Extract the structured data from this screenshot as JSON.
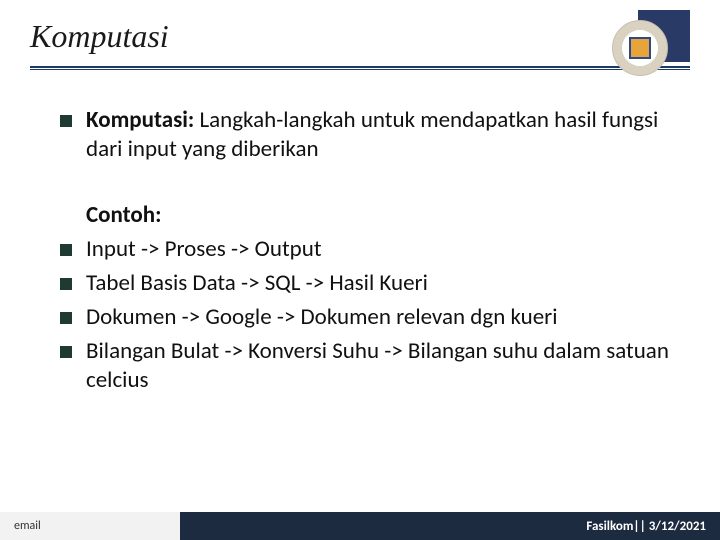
{
  "header": {
    "title": "Komputasi",
    "title_color": "#1a1a1a",
    "underline_color": "#1f3a66"
  },
  "logo": {
    "back_color": "#2a3a66",
    "seal_outer": "#d9d2c0",
    "seal_inner_bg": "#e8a43a",
    "seal_inner_border": "#2b4a8a"
  },
  "definition": {
    "term": "Komputasi:",
    "body": " Langkah-langkah untuk mendapatkan hasil fungsi dari input yang diberikan"
  },
  "examples": {
    "heading": "Contoh:",
    "items": [
      "Input -> Proses -> Output",
      "Tabel Basis Data -> SQL -> Hasil Kueri",
      "Dokumen -> Google -> Dokumen relevan dgn kueri",
      "Bilangan Bulat -> Konversi Suhu -> Bilangan suhu dalam satuan celcius"
    ]
  },
  "footer": {
    "left": "email",
    "right": "Fasilkom|| 3/12/2021",
    "left_bg": "#f2f2f2",
    "right_bg": "#1c2b3f"
  },
  "bullet_color": "#1f3a33",
  "typography": {
    "title_fontsize": 32,
    "body_fontsize": 23,
    "footer_fontsize": 12
  }
}
